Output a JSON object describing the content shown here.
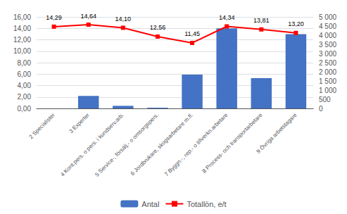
{
  "chart_data": {
    "type": "bar",
    "categories": [
      "2 Specialister",
      "3 Experter",
      "4 Kont.pers. o pers. i kundserv.arb.",
      "5 Service-, försälj.- o omsorgspers.",
      "6 Jordbrukare, skogsarbetare m.fl.",
      "7 Byggn.-, rep.- o tillverkn.arbetare",
      "8 Process- och transportarbetare",
      "9 Övriga arbetstagare"
    ],
    "series": [
      {
        "name": "Antal",
        "type": "bar",
        "color": "#4472C4",
        "values": [
          0.0,
          2.2,
          0.45,
          0.12,
          5.9,
          14.0,
          5.3,
          13.0
        ]
      },
      {
        "name": "Totallön, e/t",
        "type": "line",
        "color": "#FF0000",
        "marker": "square",
        "data_labels": true,
        "values": [
          14.29,
          14.64,
          14.1,
          12.56,
          11.45,
          14.34,
          13.81,
          13.2
        ],
        "value_labels": [
          "14,29",
          "14,64",
          "14,10",
          "12,56",
          "11,45",
          "14,34",
          "13,81",
          "13,20"
        ]
      }
    ],
    "ylim": [
      0,
      16
    ],
    "yticks": [
      {
        "value": 0,
        "label": "0,00"
      },
      {
        "value": 2,
        "label": "2,00"
      },
      {
        "value": 4,
        "label": "4,00"
      },
      {
        "value": 6,
        "label": "6,00"
      },
      {
        "value": 8,
        "label": "8,00"
      },
      {
        "value": 10,
        "label": "10,00"
      },
      {
        "value": 12,
        "label": "12,00"
      },
      {
        "value": 14,
        "label": "14,00"
      },
      {
        "value": 16,
        "label": "16,00"
      }
    ],
    "y2lim": [
      0,
      5000
    ],
    "y2ticks": [
      0,
      500,
      {
        "value": 1000,
        "label": "1 000"
      },
      {
        "value": 1500,
        "label": "1 500"
      },
      {
        "value": 2000,
        "label": "2 000"
      },
      {
        "value": 2500,
        "label": "2 500"
      },
      {
        "value": 3000,
        "label": "3 000"
      },
      {
        "value": 3500,
        "label": "3 500"
      },
      {
        "value": 4000,
        "label": "4 000"
      },
      {
        "value": 4500,
        "label": "4 500"
      },
      {
        "value": 5000,
        "label": "5 000"
      }
    ],
    "grid": true,
    "legend": "bottom"
  }
}
